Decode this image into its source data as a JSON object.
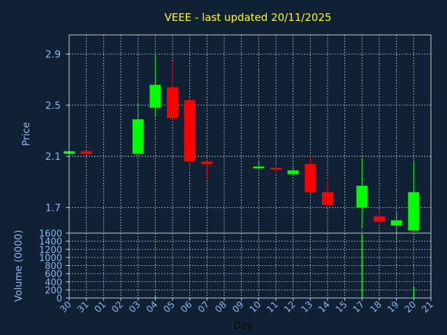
{
  "chart_data": [
    {
      "type": "candlestick",
      "title": "VEEE - last updated 20/11/2025",
      "ylabel": "Price",
      "xlabel": "Day",
      "ylim": [
        1.5,
        3.05
      ],
      "yticks": [
        "1.7",
        "2.1",
        "2.5",
        "2.9"
      ],
      "grid": true,
      "colors": {
        "up": "#00ff00",
        "down": "#ff0000",
        "title": "#ffff00",
        "axis_text": "#8fb6e8"
      },
      "x_ticks": [
        "30",
        "31",
        "01",
        "02",
        "03",
        "04",
        "05",
        "06",
        "07",
        "08",
        "09",
        "10",
        "11",
        "12",
        "13",
        "14",
        "15",
        "17",
        "18",
        "19",
        "20",
        "21"
      ],
      "candles": [
        {
          "day": "30",
          "open": 2.12,
          "high": 2.14,
          "low": 2.12,
          "close": 2.14
        },
        {
          "day": "31",
          "open": 2.14,
          "high": 2.14,
          "low": 2.12,
          "close": 2.12
        },
        {
          "day": "03",
          "open": 2.12,
          "high": 2.52,
          "low": 2.12,
          "close": 2.39
        },
        {
          "day": "04",
          "open": 2.48,
          "high": 2.89,
          "low": 2.41,
          "close": 2.66
        },
        {
          "day": "05",
          "open": 2.64,
          "high": 2.84,
          "low": 2.39,
          "close": 2.4
        },
        {
          "day": "06",
          "open": 2.54,
          "high": 2.54,
          "low": 1.99,
          "close": 2.06
        },
        {
          "day": "07",
          "open": 2.06,
          "high": 2.06,
          "low": 1.93,
          "close": 2.04
        },
        {
          "day": "10",
          "open": 2.01,
          "high": 2.06,
          "low": 2.01,
          "close": 2.02
        },
        {
          "day": "11",
          "open": 2.01,
          "high": 2.02,
          "low": 1.97,
          "close": 2.0
        },
        {
          "day": "12",
          "open": 1.96,
          "high": 2.02,
          "low": 1.96,
          "close": 1.99
        },
        {
          "day": "13",
          "open": 2.04,
          "high": 2.11,
          "low": 1.81,
          "close": 1.82
        },
        {
          "day": "14",
          "open": 1.82,
          "high": 1.92,
          "low": 1.7,
          "close": 1.72
        },
        {
          "day": "17",
          "open": 1.7,
          "high": 2.09,
          "low": 1.54,
          "close": 1.87
        },
        {
          "day": "18",
          "open": 1.63,
          "high": 1.67,
          "low": 1.57,
          "close": 1.59
        },
        {
          "day": "19",
          "open": 1.56,
          "high": 1.66,
          "low": 1.45,
          "close": 1.6
        },
        {
          "day": "20",
          "open": 1.52,
          "high": 2.06,
          "low": 1.52,
          "close": 1.82
        }
      ]
    },
    {
      "type": "bar",
      "ylabel": "Volume (0000)",
      "ylim": [
        0,
        1600
      ],
      "yticks": [
        "0",
        "200",
        "400",
        "600",
        "800",
        "1000",
        "1200",
        "1400",
        "1600"
      ],
      "grid": true,
      "bars": [
        {
          "day": "03",
          "value": 15
        },
        {
          "day": "04",
          "value": 45
        },
        {
          "day": "17",
          "value": 1560
        },
        {
          "day": "20",
          "value": 280
        }
      ]
    }
  ]
}
